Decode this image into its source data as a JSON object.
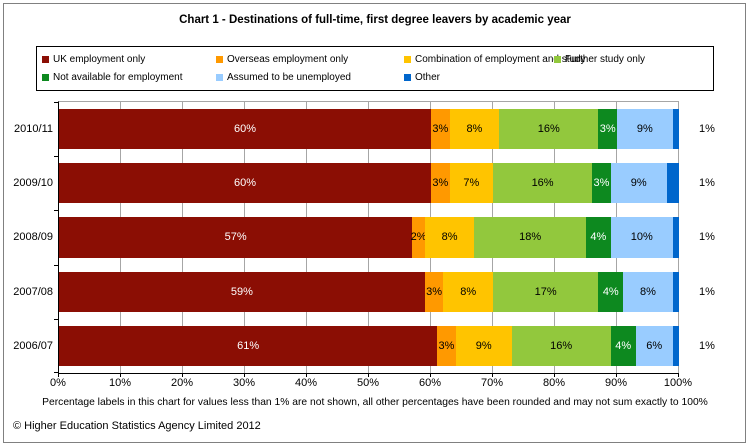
{
  "footer": {
    "copyright": "© Higher Education Statistics Agency Limited 2012"
  },
  "chart_data": {
    "type": "bar",
    "stacked": true,
    "orientation": "horizontal",
    "title": "Chart 1 - Destinations of full-time, first degree leavers by academic year",
    "footnote": "Percentage labels in this chart for values less than 1% are not shown, all other percentages have been rounded and may not sum exactly to 100%",
    "categories": [
      "2010/11",
      "2009/10",
      "2008/09",
      "2007/08",
      "2006/07"
    ],
    "series": [
      {
        "name": "UK employment only",
        "color": "#8B0E04",
        "text_color": "#FFFFFF",
        "values": [
          60,
          60,
          57,
          59,
          61
        ]
      },
      {
        "name": "Overseas employment only",
        "color": "#FF9900",
        "text_color": "#000000",
        "values": [
          3,
          3,
          2,
          3,
          3
        ]
      },
      {
        "name": "Combination of employment and study",
        "color": "#FFC400",
        "text_color": "#000000",
        "values": [
          8,
          7,
          8,
          8,
          9
        ]
      },
      {
        "name": "Further study only",
        "color": "#92C83D",
        "text_color": "#000000",
        "values": [
          16,
          16,
          18,
          17,
          16
        ]
      },
      {
        "name": "Not available for employment",
        "color": "#0D891F",
        "text_color": "#FFFFFF",
        "values": [
          3,
          3,
          4,
          4,
          4
        ]
      },
      {
        "name": "Assumed to be unemployed",
        "color": "#99CCFF",
        "text_color": "#000000",
        "values": [
          9,
          9,
          10,
          8,
          6
        ]
      },
      {
        "name": "Other",
        "color": "#0066CC",
        "text_color": "#000000",
        "values": [
          1,
          1,
          1,
          1,
          1
        ],
        "label_outside": true
      }
    ],
    "x_ticks": [
      "0%",
      "10%",
      "20%",
      "30%",
      "40%",
      "50%",
      "60%",
      "70%",
      "80%",
      "90%",
      "100%"
    ],
    "xlim": [
      0,
      100
    ],
    "legend_position": "top",
    "grid": true,
    "grid_color": "#A6A6A6"
  }
}
